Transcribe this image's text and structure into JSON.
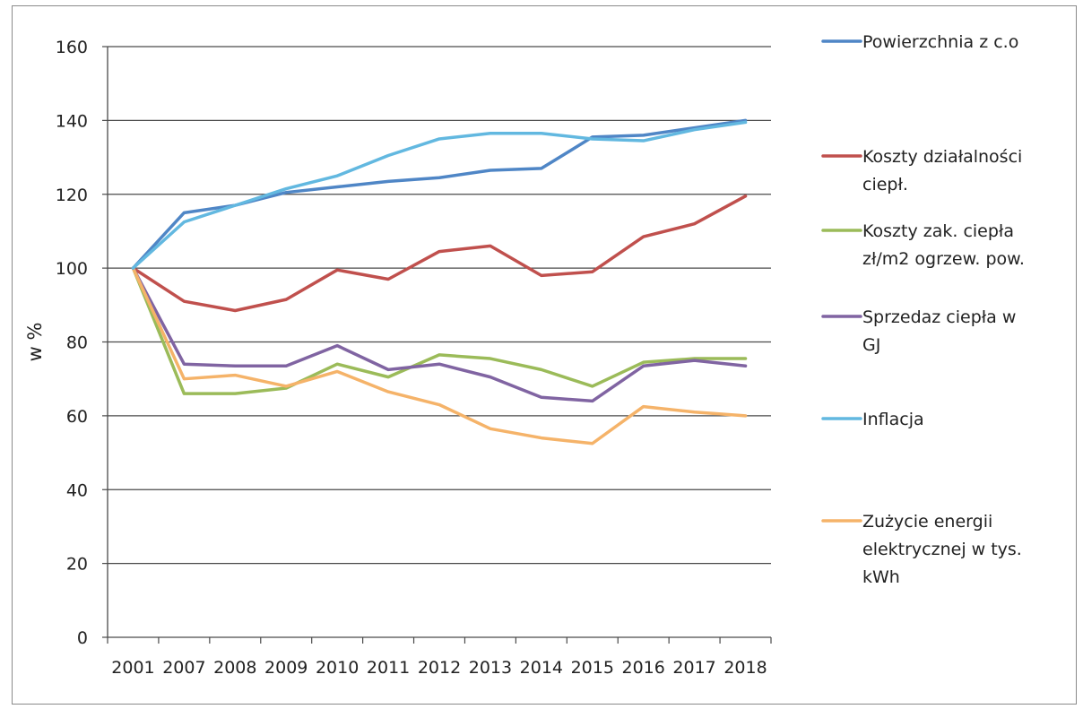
{
  "chart_data": {
    "type": "line",
    "title": "",
    "xlabel": "",
    "ylabel": "w %",
    "ylim": [
      0,
      160
    ],
    "yticks": [
      "0",
      "20",
      "40",
      "60",
      "80",
      "100",
      "120",
      "140",
      "160"
    ],
    "categories": [
      "2001",
      "2007",
      "2008",
      "2009",
      "2010",
      "2011",
      "2012",
      "2013",
      "2014",
      "2015",
      "2016",
      "2017",
      "2018"
    ],
    "grid": true,
    "legend_position": "right",
    "series": [
      {
        "name": "Powierzchnia z c.o",
        "color": "#4f86c6",
        "legend_lines": [
          "Powierzchnia z c.o"
        ],
        "values": [
          100,
          115,
          117,
          120.5,
          122,
          123.5,
          124.5,
          126.5,
          127,
          135.5,
          136,
          138,
          140
        ]
      },
      {
        "name": "Koszty działalności ciepł.",
        "color": "#c0504d",
        "legend_lines": [
          "Koszty działalności",
          "ciepł."
        ],
        "values": [
          100,
          91,
          88.5,
          91.5,
          99.5,
          97,
          104.5,
          106,
          98,
          99,
          108.5,
          112,
          119.5
        ]
      },
      {
        "name": "Koszty zak. ciepła zł/m2 ogrzew. pow.",
        "color": "#9bbb59",
        "legend_lines": [
          "Koszty zak. ciepła",
          "zł/m2 ogrzew. pow."
        ],
        "values": [
          100,
          66,
          66,
          67.5,
          74,
          70.5,
          76.5,
          75.5,
          72.5,
          68,
          74.5,
          75.5,
          75.5
        ]
      },
      {
        "name": "Sprzedaz ciepła w GJ",
        "color": "#8064a2",
        "legend_lines": [
          "Sprzedaz ciepła w",
          "GJ"
        ],
        "values": [
          100,
          74,
          73.5,
          73.5,
          79,
          72.5,
          74,
          70.5,
          65,
          64,
          73.5,
          75,
          73.5
        ]
      },
      {
        "name": "Inflacja",
        "color": "#62b8e0",
        "legend_lines": [
          "Inflacja"
        ],
        "values": [
          100,
          112.5,
          117,
          121.5,
          125,
          130.5,
          135,
          136.5,
          136.5,
          135,
          134.5,
          137.5,
          139.5
        ]
      },
      {
        "name": "Zużycie energii elektrycznej w tys. kWh",
        "color": "#f5b369",
        "legend_lines": [
          "Zużycie energii",
          "elektrycznej w tys.",
          "kWh"
        ],
        "values": [
          100,
          70,
          71,
          68,
          72,
          66.5,
          63,
          56.5,
          54,
          52.5,
          62.5,
          61,
          60
        ]
      }
    ]
  }
}
